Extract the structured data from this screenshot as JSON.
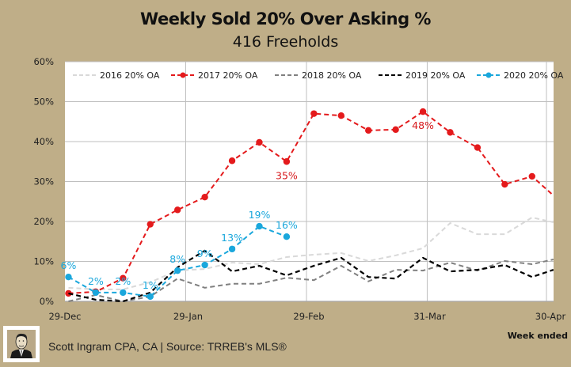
{
  "chart_data": {
    "type": "line",
    "title": "Weekly Sold 20% Over Asking %",
    "subtitle": "416 Freeholds",
    "xlabel": "Week ended",
    "ylabel": "",
    "x_ticks": [
      "29-Dec",
      "29-Jan",
      "29-Feb",
      "31-Mar",
      "30-Apr"
    ],
    "x_tick_days": [
      0,
      31,
      62,
      93,
      123
    ],
    "xlim_days": [
      0,
      125
    ],
    "ylim": [
      0,
      60
    ],
    "y_ticks": [
      "0%",
      "10%",
      "20%",
      "30%",
      "40%",
      "50%",
      "60%"
    ],
    "y_tick_values": [
      0,
      10,
      20,
      30,
      40,
      50,
      60
    ],
    "grid": true,
    "legend_position": "top",
    "x_days": [
      0.5,
      7.5,
      14.5,
      21.5,
      28.5,
      35.5,
      42.5,
      49.5,
      56.5,
      63.5,
      70.5,
      77.5,
      84.5,
      91.5,
      98.5,
      105.5,
      112.5,
      119.5,
      125
    ],
    "series": [
      {
        "name": "2016 20% OA",
        "color": "#d9d9d9",
        "markers": false,
        "values": [
          3.4,
          3.0,
          3.0,
          4.8,
          7.7,
          8.1,
          9.7,
          9.3,
          11.1,
          11.7,
          12.1,
          10.1,
          11.5,
          13.3,
          19.6,
          16.8,
          16.8,
          21.0,
          19.8
        ]
      },
      {
        "name": "2017 20% OA",
        "color": "#e41a1c",
        "markers": true,
        "values": [
          2.0,
          2.4,
          5.8,
          19.3,
          22.9,
          26.1,
          35.2,
          39.8,
          35.0,
          47.0,
          46.5,
          42.8,
          43.0,
          47.5,
          42.3,
          38.5,
          29.3,
          31.3,
          26.5
        ]
      },
      {
        "name": "2018 20% OA",
        "color": "#808080",
        "markers": false,
        "values": [
          0.0,
          1.6,
          0.0,
          1.2,
          5.7,
          3.4,
          4.4,
          4.4,
          5.9,
          5.3,
          8.9,
          5.0,
          7.9,
          7.7,
          9.7,
          7.7,
          10.1,
          9.3,
          10.5
        ]
      },
      {
        "name": "2019 20% OA",
        "color": "#000000",
        "markers": false,
        "values": [
          2.0,
          0.4,
          0.0,
          2.2,
          8.5,
          12.7,
          7.5,
          8.9,
          6.5,
          8.9,
          10.9,
          6.1,
          5.7,
          10.9,
          7.5,
          7.9,
          9.1,
          6.1,
          7.9
        ]
      },
      {
        "name": "2020 20% OA",
        "color": "#1aa7dc",
        "markers": true,
        "values": [
          6.1,
          2.2,
          2.2,
          1.2,
          7.7,
          9.1,
          13.1,
          18.8,
          16.2
        ]
      }
    ],
    "annotations": [
      {
        "series": "2020 20% OA",
        "index": 0,
        "text": "6%",
        "placement": "above"
      },
      {
        "series": "2020 20% OA",
        "index": 1,
        "text": "2%",
        "placement": "above"
      },
      {
        "series": "2020 20% OA",
        "index": 2,
        "text": "2%",
        "placement": "above"
      },
      {
        "series": "2020 20% OA",
        "index": 3,
        "text": "1%",
        "placement": "above"
      },
      {
        "series": "2020 20% OA",
        "index": 4,
        "text": "8%",
        "placement": "above"
      },
      {
        "series": "2020 20% OA",
        "index": 5,
        "text": "9%",
        "placement": "above"
      },
      {
        "series": "2020 20% OA",
        "index": 6,
        "text": "13%",
        "placement": "above"
      },
      {
        "series": "2020 20% OA",
        "index": 7,
        "text": "19%",
        "placement": "above"
      },
      {
        "series": "2020 20% OA",
        "index": 8,
        "text": "16%",
        "placement": "above"
      },
      {
        "series": "2017 20% OA",
        "index": 8,
        "text": "35%",
        "placement": "below"
      },
      {
        "series": "2017 20% OA",
        "index": 13,
        "text": "48%",
        "placement": "below"
      }
    ]
  },
  "footer": {
    "credit": "Scott Ingram CPA, CA | Source: TRREB's MLS®",
    "logo_icon": "portrait-icon"
  }
}
